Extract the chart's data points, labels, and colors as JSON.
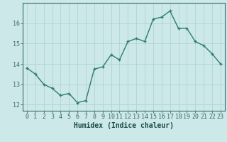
{
  "x": [
    0,
    1,
    2,
    3,
    4,
    5,
    6,
    7,
    8,
    9,
    10,
    11,
    12,
    13,
    14,
    15,
    16,
    17,
    18,
    19,
    20,
    21,
    22,
    23
  ],
  "y": [
    13.8,
    13.5,
    13.0,
    12.8,
    12.45,
    12.55,
    12.1,
    12.2,
    13.75,
    13.85,
    14.45,
    14.2,
    15.1,
    15.25,
    15.1,
    16.2,
    16.3,
    16.6,
    15.75,
    15.75,
    15.1,
    14.9,
    14.5,
    14.0
  ],
  "xlabel": "Humidex (Indice chaleur)",
  "xticks": [
    0,
    1,
    2,
    3,
    4,
    5,
    6,
    7,
    8,
    9,
    10,
    11,
    12,
    13,
    14,
    15,
    16,
    17,
    18,
    19,
    20,
    21,
    22,
    23
  ],
  "yticks": [
    12,
    13,
    14,
    15,
    16
  ],
  "ylim": [
    11.7,
    17.0
  ],
  "xlim": [
    -0.5,
    23.5
  ],
  "line_color": "#2d7d6f",
  "marker_color": "#2d7d6f",
  "bg_color": "#cce8e8",
  "grid_color": "#aad0d0",
  "axes_color": "#3a6a6a",
  "tick_label_color": "#1a4a4a",
  "xlabel_color": "#1a4a4a",
  "xlabel_fontsize": 7,
  "tick_fontsize": 6,
  "linewidth": 1.0,
  "markersize": 3.5
}
